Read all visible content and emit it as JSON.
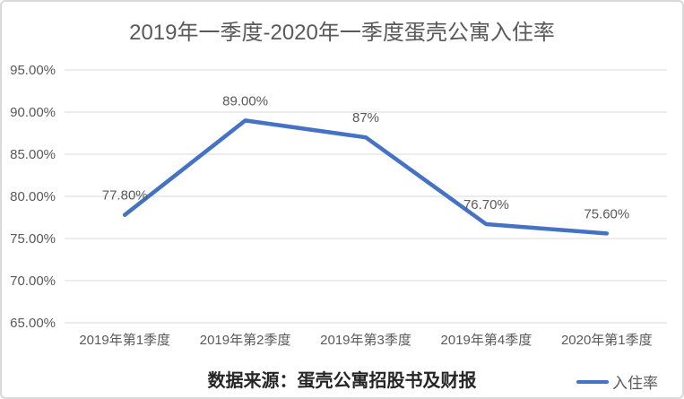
{
  "chart": {
    "title": "2019年一季度-2020年一季度蛋壳公寓入住率",
    "source_note": "数据来源：蛋壳公寓招股书及财报",
    "legend_label": "入住率"
  },
  "chart_data": {
    "type": "line",
    "title": "2019年一季度-2020年一季度蛋壳公寓入住率",
    "categories": [
      "2019年第1季度",
      "2019年第2季度",
      "2019年第3季度",
      "2019年第4季度",
      "2020年第1季度"
    ],
    "series": [
      {
        "name": "入住率",
        "values": [
          77.8,
          89.0,
          87.0,
          76.7,
          75.6
        ],
        "point_labels": [
          "77.80%",
          "89.00%",
          "87%",
          "76.70%",
          "75.60%"
        ]
      }
    ],
    "xlabel": "",
    "ylabel": "",
    "ylim": [
      65,
      95
    ],
    "ytick_values": [
      95,
      90,
      85,
      80,
      75,
      70,
      65
    ],
    "ytick_labels": [
      "95.00%",
      "90.00%",
      "85.00%",
      "80.00%",
      "75.00%",
      "70.00%",
      "65.00%"
    ],
    "grid": true,
    "legend_position": "bottom-right",
    "source_note": "数据来源：蛋壳公寓招股书及财报",
    "colors": {
      "line": "#4472C4",
      "grid": "#d9d9d9",
      "axis_text": "#595959",
      "data_label_text": "#595959",
      "title_text": "#595959",
      "source_text": "#262626",
      "frame_border": "#d9d9d9",
      "background": "#ffffff"
    }
  }
}
